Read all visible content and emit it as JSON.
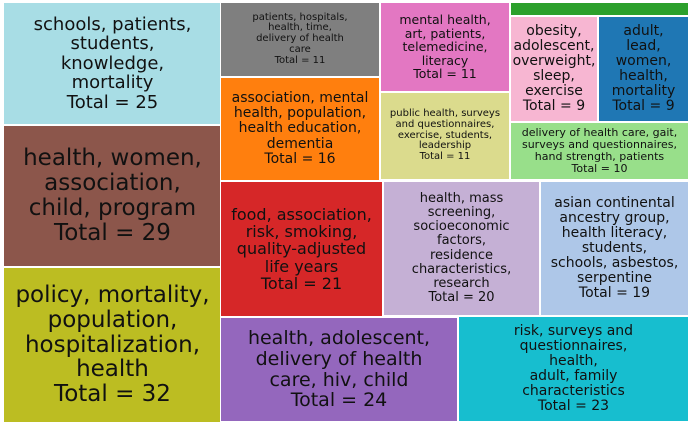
{
  "chart_data": {
    "type": "treemap",
    "items": [
      {
        "label": "schools, patients,\nstudents,\nknowledge,\nmortality",
        "total_text": "Total = 25",
        "value": 25,
        "color": "#a8dde5"
      },
      {
        "label": "health, women,\nassociation,\nchild, program",
        "total_text": "Total = 29",
        "value": 29,
        "color": "#8c564b"
      },
      {
        "label": "policy, mortality,\npopulation,\nhospitalization,\nhealth",
        "total_text": "Total = 32",
        "value": 32,
        "color": "#bcbd22"
      },
      {
        "label": "patients, hospitals,\nhealth, time,\ndelivery of health\ncare",
        "total_text": "Total = 11",
        "value": 11,
        "color": "#7f7f7f"
      },
      {
        "label": "mental health,\nart, patients,\ntelemedicine,\nliteracy",
        "total_text": "Total = 11",
        "value": 11,
        "color": "#e377c2"
      },
      {
        "label": "",
        "total_text": "",
        "value": 1,
        "color": "#2ca02c"
      },
      {
        "label": "obesity,\nadolescent,\noverweight,\nsleep,\nexercise",
        "total_text": "Total = 9",
        "value": 9,
        "color": "#f7b6d2"
      },
      {
        "label": "adult,\nlead,\nwomen,\nhealth,\nmortality",
        "total_text": "Total = 9",
        "value": 9,
        "color": "#1f77b4"
      },
      {
        "label": "association, mental\nhealth, population,\nhealth education,\ndementia",
        "total_text": "Total = 16",
        "value": 16,
        "color": "#ff7f0e"
      },
      {
        "label": "public health, surveys\nand questionnaires,\nexercise, students,\nleadership",
        "total_text": "Total = 11",
        "value": 11,
        "color": "#dbdb8d"
      },
      {
        "label": "delivery of health care, gait,\nsurveys and questionnaires,\nhand strength, patients",
        "total_text": "Total = 10",
        "value": 10,
        "color": "#98df8a"
      },
      {
        "label": "food, association,\nrisk, smoking,\nquality-adjusted\nlife years",
        "total_text": "Total = 21",
        "value": 21,
        "color": "#d62728"
      },
      {
        "label": "health, mass\nscreening,\nsocioeconomic\nfactors,\nresidence\ncharacteristics,\nresearch",
        "total_text": "Total = 20",
        "value": 20,
        "color": "#c5b0d5"
      },
      {
        "label": "asian continental\nancestry group,\nhealth literacy,\nstudents,\nschools, asbestos,\nserpentine",
        "total_text": "Total = 19",
        "value": 19,
        "color": "#aec7e8"
      },
      {
        "label": "health, adolescent,\ndelivery of health\ncare, hiv, child",
        "total_text": "Total = 24",
        "value": 24,
        "color": "#9467bd"
      },
      {
        "label": "risk, surveys and\nquestionnaires,\nhealth,\nadult, family\ncharacteristics",
        "total_text": "Total = 23",
        "value": 23,
        "color": "#17becf"
      }
    ]
  }
}
